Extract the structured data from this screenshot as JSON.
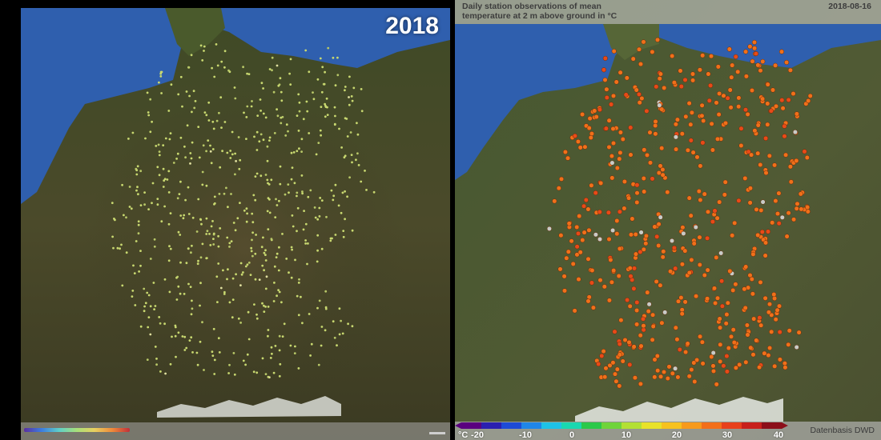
{
  "left_panel": {
    "year": "2018"
  },
  "right_panel": {
    "title": "Daily station observations of mean temperature at 2 m above ground in °C",
    "date": "2018-08-16",
    "data_source": "Datenbasis DWD",
    "legend": {
      "unit": "°C",
      "ticks": [
        "-20",
        "-10",
        "0",
        "10",
        "20",
        "30",
        "40"
      ],
      "colors": [
        "#5a007f",
        "#2a1fb0",
        "#1d4bd6",
        "#1f86e8",
        "#1ec2e6",
        "#19d8b0",
        "#2bc94a",
        "#6fd43a",
        "#b3e034",
        "#e8e22a",
        "#f6c21f",
        "#f79a1c",
        "#f36f1a",
        "#e8401c",
        "#c8201c",
        "#8c0f1a"
      ]
    }
  },
  "colors": {
    "left_station_dot": "#c8d870",
    "right_station_dot": "#f0701a",
    "right_station_dot_alt": "#e84a18",
    "missing_station_dot": "#c8ccc8",
    "sea": "#2f5fae"
  }
}
